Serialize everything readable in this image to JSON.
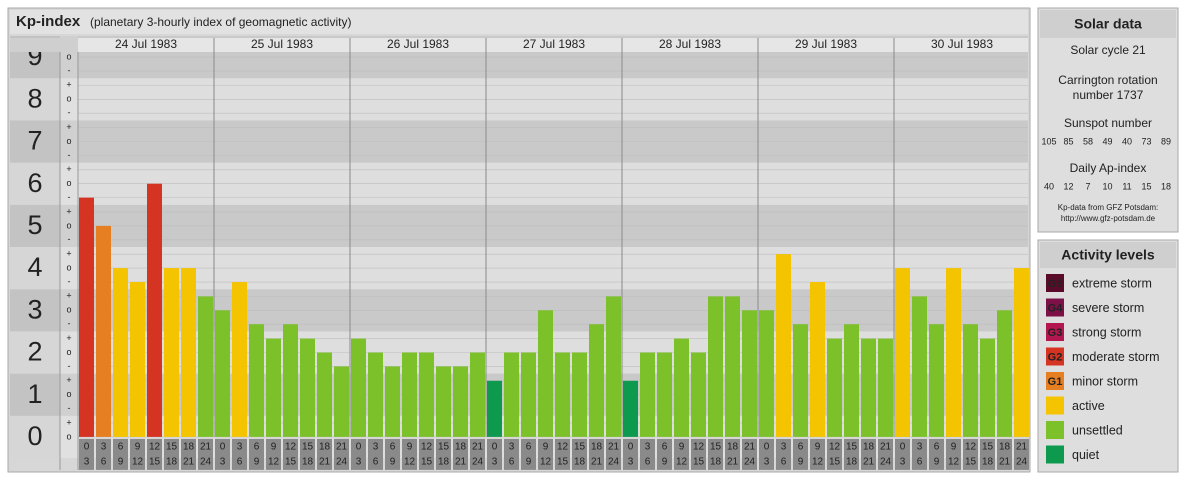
{
  "chart_data": {
    "type": "bar",
    "title": "Kp-index",
    "subtitle": "(planetary 3-hourly index of geomagnetic activity)",
    "categories": [
      [
        "0",
        "3"
      ],
      [
        "3",
        "6"
      ],
      [
        "6",
        "9"
      ],
      [
        "9",
        "12"
      ],
      [
        "12",
        "15"
      ],
      [
        "15",
        "18"
      ],
      [
        "18",
        "21"
      ],
      [
        "21",
        "24"
      ]
    ],
    "series": [
      {
        "name": "24 Jul 1983",
        "values": [
          5.67,
          5,
          4,
          3.67,
          6,
          4,
          4,
          3.33
        ],
        "colors": [
          "#d63422",
          "#e67e22",
          "#f5c400",
          "#f5c400",
          "#d63422",
          "#f5c400",
          "#f5c400",
          "#7cc12a"
        ]
      },
      {
        "name": "25 Jul 1983",
        "values": [
          3,
          3.67,
          2.67,
          2.33,
          2.67,
          2.33,
          2,
          1.67
        ],
        "colors": [
          "#7cc12a",
          "#f5c400",
          "#7cc12a",
          "#7cc12a",
          "#7cc12a",
          "#7cc12a",
          "#7cc12a",
          "#7cc12a"
        ]
      },
      {
        "name": "26 Jul 1983",
        "values": [
          2.33,
          2,
          1.67,
          2,
          2,
          1.67,
          1.67,
          2
        ],
        "colors": [
          "#7cc12a",
          "#7cc12a",
          "#7cc12a",
          "#7cc12a",
          "#7cc12a",
          "#7cc12a",
          "#7cc12a",
          "#7cc12a"
        ]
      },
      {
        "name": "27 Jul 1983",
        "values": [
          1.33,
          2,
          2,
          3,
          2,
          2,
          2.67,
          3.33
        ],
        "colors": [
          "#0e9a4e",
          "#7cc12a",
          "#7cc12a",
          "#7cc12a",
          "#7cc12a",
          "#7cc12a",
          "#7cc12a",
          "#7cc12a"
        ]
      },
      {
        "name": "28 Jul 1983",
        "values": [
          1.33,
          2,
          2,
          2.33,
          2,
          3.33,
          3.33,
          3
        ],
        "colors": [
          "#0e9a4e",
          "#7cc12a",
          "#7cc12a",
          "#7cc12a",
          "#7cc12a",
          "#7cc12a",
          "#7cc12a",
          "#7cc12a"
        ]
      },
      {
        "name": "29 Jul 1983",
        "values": [
          3,
          4.33,
          2.67,
          3.67,
          2.33,
          2.67,
          2.33,
          2.33
        ],
        "colors": [
          "#7cc12a",
          "#f5c400",
          "#7cc12a",
          "#f5c400",
          "#7cc12a",
          "#7cc12a",
          "#7cc12a",
          "#7cc12a"
        ]
      },
      {
        "name": "30 Jul 1983",
        "values": [
          4,
          3.33,
          2.67,
          4,
          2.67,
          2.33,
          3,
          4
        ],
        "colors": [
          "#f5c400",
          "#7cc12a",
          "#7cc12a",
          "#f5c400",
          "#7cc12a",
          "#7cc12a",
          "#7cc12a",
          "#f5c400"
        ]
      }
    ],
    "ylim": [
      -0.5,
      9.5
    ],
    "yticks": [
      0,
      1,
      2,
      3,
      4,
      5,
      6,
      7,
      8,
      9
    ],
    "minor_yticks": [
      {
        "value": 0,
        "label": "o"
      },
      {
        "value": 0.33,
        "label": "+"
      },
      {
        "value": 0.67,
        "label": "-"
      },
      {
        "value": 1,
        "label": "o"
      },
      {
        "value": 1.33,
        "label": "+"
      },
      {
        "value": 1.67,
        "label": "-"
      },
      {
        "value": 2,
        "label": "o"
      },
      {
        "value": 2.33,
        "label": "+"
      },
      {
        "value": 2.67,
        "label": "-"
      },
      {
        "value": 3,
        "label": "o"
      },
      {
        "value": 3.33,
        "label": "+"
      },
      {
        "value": 3.67,
        "label": "-"
      },
      {
        "value": 4,
        "label": "o"
      },
      {
        "value": 4.33,
        "label": "+"
      },
      {
        "value": 4.67,
        "label": "-"
      },
      {
        "value": 5,
        "label": "o"
      },
      {
        "value": 5.33,
        "label": "+"
      },
      {
        "value": 5.67,
        "label": "-"
      },
      {
        "value": 6,
        "label": "o"
      },
      {
        "value": 6.33,
        "label": "+"
      },
      {
        "value": 6.67,
        "label": "-"
      },
      {
        "value": 7,
        "label": "o"
      },
      {
        "value": 7.33,
        "label": "+"
      },
      {
        "value": 7.67,
        "label": "-"
      },
      {
        "value": 8,
        "label": "o"
      },
      {
        "value": 8.33,
        "label": "+"
      },
      {
        "value": 8.67,
        "label": "-"
      },
      {
        "value": 9,
        "label": "o"
      }
    ],
    "grid": true
  },
  "solar_data": {
    "title": "Solar data",
    "cycle": "Solar cycle 21",
    "carrington": [
      "Carrington rotation",
      "number 1737"
    ],
    "sunspot_title": "Sunspot number",
    "sunspot": [
      105,
      85,
      58,
      49,
      40,
      73,
      89
    ],
    "ap_title": "Daily Ap-index",
    "ap": [
      40,
      12,
      7,
      10,
      11,
      15,
      18
    ],
    "source": [
      "Kp-data from GFZ Potsdam:",
      "http://www.gfz-potsdam.de"
    ]
  },
  "activity_levels": {
    "title": "Activity levels",
    "items": [
      {
        "code": "G5",
        "label": "extreme storm",
        "color": "#5a0b2a"
      },
      {
        "code": "G4",
        "label": "severe storm",
        "color": "#7c1148"
      },
      {
        "code": "G3",
        "label": "strong storm",
        "color": "#b3174f"
      },
      {
        "code": "G2",
        "label": "moderate storm",
        "color": "#d63422"
      },
      {
        "code": "G1",
        "label": "minor storm",
        "color": "#e67e22"
      },
      {
        "label": "active",
        "color": "#f5c400"
      },
      {
        "label": "unsettled",
        "color": "#7cc12a"
      },
      {
        "label": "quiet",
        "color": "#0e9a4e"
      }
    ]
  }
}
